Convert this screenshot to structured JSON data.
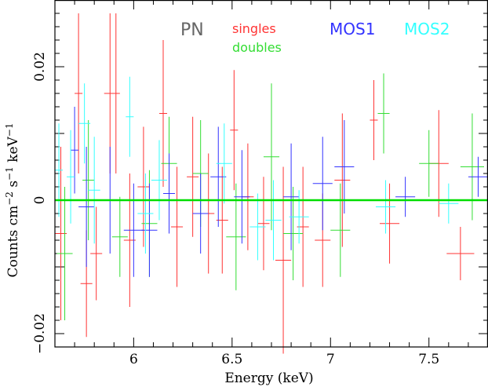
{
  "chart_data": {
    "type": "scatter",
    "xlabel": "Energy (keV)",
    "ylabel": "Counts cm^-2 s^-1 keV^-1",
    "xlim": [
      5.6,
      7.8
    ],
    "ylim": [
      -0.022,
      0.03
    ],
    "x_ticks": [
      "6",
      "6.5",
      "7",
      "7.5"
    ],
    "x_tick_values": [
      6,
      6.5,
      7,
      7.5
    ],
    "y_ticks": [
      "−0.02",
      "0",
      "0.02"
    ],
    "y_tick_values": [
      -0.02,
      0,
      0.02
    ],
    "model_line": {
      "y": 0,
      "color": "#00dd00"
    },
    "legend": [
      {
        "label": "PN",
        "color": "#666666"
      },
      {
        "label": "singles",
        "color": "#ff3333"
      },
      {
        "label": "doubles",
        "color": "#33dd33"
      },
      {
        "label": "MOS1",
        "color": "#3333ff"
      },
      {
        "label": "MOS2",
        "color": "#33ffff"
      }
    ],
    "series": [
      {
        "legend": "PN singles",
        "color": "#ff3333",
        "points": [
          {
            "x": 5.63,
            "y": -0.005,
            "xerr": 0.03,
            "yerr": 0.013
          },
          {
            "x": 5.72,
            "y": 0.016,
            "xerr": 0.02,
            "yerr": 0.012
          },
          {
            "x": 5.76,
            "y": -0.0125,
            "xerr": 0.03,
            "yerr": 0.008
          },
          {
            "x": 5.81,
            "y": -0.008,
            "xerr": 0.03,
            "yerr": 0.007
          },
          {
            "x": 5.88,
            "y": 0.016,
            "xerr": 0.03,
            "yerr": 0.012
          },
          {
            "x": 5.91,
            "y": 0.016,
            "xerr": 0.02,
            "yerr": 0.012
          },
          {
            "x": 5.98,
            "y": -0.006,
            "xerr": 0.03,
            "yerr": 0.01
          },
          {
            "x": 6.05,
            "y": 0.002,
            "xerr": 0.03,
            "yerr": 0.009
          },
          {
            "x": 6.15,
            "y": 0.013,
            "xerr": 0.02,
            "yerr": 0.011
          },
          {
            "x": 6.22,
            "y": -0.004,
            "xerr": 0.03,
            "yerr": 0.009
          },
          {
            "x": 6.3,
            "y": 0.0035,
            "xerr": 0.03,
            "yerr": 0.009
          },
          {
            "x": 6.38,
            "y": -0.002,
            "xerr": 0.03,
            "yerr": 0.009
          },
          {
            "x": 6.45,
            "y": -0.003,
            "xerr": 0.03,
            "yerr": 0.008
          },
          {
            "x": 6.51,
            "y": 0.0105,
            "xerr": 0.02,
            "yerr": 0.009
          },
          {
            "x": 6.58,
            "y": 0.0005,
            "xerr": 0.03,
            "yerr": 0.008
          },
          {
            "x": 6.66,
            "y": -0.0035,
            "xerr": 0.03,
            "yerr": 0.007
          },
          {
            "x": 6.76,
            "y": -0.009,
            "xerr": 0.04,
            "yerr": 0.014
          },
          {
            "x": 6.86,
            "y": -0.004,
            "xerr": 0.03,
            "yerr": 0.009
          },
          {
            "x": 6.96,
            "y": -0.006,
            "xerr": 0.04,
            "yerr": 0.007
          },
          {
            "x": 7.06,
            "y": 0.003,
            "xerr": 0.04,
            "yerr": 0.01
          },
          {
            "x": 7.22,
            "y": 0.012,
            "xerr": 0.02,
            "yerr": 0.006
          },
          {
            "x": 7.3,
            "y": -0.0035,
            "xerr": 0.05,
            "yerr": 0.006
          },
          {
            "x": 7.55,
            "y": 0.0055,
            "xerr": 0.05,
            "yerr": 0.008
          },
          {
            "x": 7.66,
            "y": -0.008,
            "xerr": 0.07,
            "yerr": 0.004
          }
        ]
      },
      {
        "legend": "PN doubles",
        "color": "#33dd33",
        "points": [
          {
            "x": 5.65,
            "y": -0.008,
            "xerr": 0.04,
            "yerr": 0.01
          },
          {
            "x": 5.77,
            "y": 0.003,
            "xerr": 0.03,
            "yerr": 0.009
          },
          {
            "x": 5.93,
            "y": -0.0055,
            "xerr": 0.04,
            "yerr": 0.006
          },
          {
            "x": 6.08,
            "y": -0.0035,
            "xerr": 0.04,
            "yerr": 0.008
          },
          {
            "x": 6.18,
            "y": 0.0055,
            "xerr": 0.04,
            "yerr": 0.007
          },
          {
            "x": 6.34,
            "y": 0.004,
            "xerr": 0.04,
            "yerr": 0.008
          },
          {
            "x": 6.52,
            "y": -0.0055,
            "xerr": 0.05,
            "yerr": 0.008
          },
          {
            "x": 6.7,
            "y": 0.0065,
            "xerr": 0.04,
            "yerr": 0.011
          },
          {
            "x": 6.81,
            "y": -0.005,
            "xerr": 0.05,
            "yerr": 0.007
          },
          {
            "x": 7.05,
            "y": -0.0045,
            "xerr": 0.05,
            "yerr": 0.007
          },
          {
            "x": 7.27,
            "y": 0.013,
            "xerr": 0.03,
            "yerr": 0.006
          },
          {
            "x": 7.5,
            "y": 0.0055,
            "xerr": 0.05,
            "yerr": 0.005
          },
          {
            "x": 7.72,
            "y": 0.005,
            "xerr": 0.06,
            "yerr": 0.008
          }
        ]
      },
      {
        "legend": "MOS1",
        "color": "#3333ff",
        "points": [
          {
            "x": 5.7,
            "y": 0.0075,
            "xerr": 0.02,
            "yerr": 0.0065
          },
          {
            "x": 5.76,
            "y": -0.001,
            "xerr": 0.04,
            "yerr": 0.009
          },
          {
            "x": 5.88,
            "y": 0.0,
            "xerr": 0.03,
            "yerr": 0.008
          },
          {
            "x": 6.0,
            "y": -0.0045,
            "xerr": 0.05,
            "yerr": 0.007
          },
          {
            "x": 6.08,
            "y": -0.0045,
            "xerr": 0.04,
            "yerr": 0.007
          },
          {
            "x": 6.18,
            "y": 0.001,
            "xerr": 0.03,
            "yerr": 0.006
          },
          {
            "x": 6.34,
            "y": -0.002,
            "xerr": 0.04,
            "yerr": 0.006
          },
          {
            "x": 6.43,
            "y": 0.0035,
            "xerr": 0.04,
            "yerr": 0.0075
          },
          {
            "x": 6.55,
            "y": 0.0005,
            "xerr": 0.04,
            "yerr": 0.007
          },
          {
            "x": 6.8,
            "y": 0.0005,
            "xerr": 0.04,
            "yerr": 0.008
          },
          {
            "x": 6.96,
            "y": 0.0025,
            "xerr": 0.05,
            "yerr": 0.007
          },
          {
            "x": 7.07,
            "y": 0.005,
            "xerr": 0.05,
            "yerr": 0.007
          },
          {
            "x": 7.38,
            "y": 0.0005,
            "xerr": 0.05,
            "yerr": 0.003
          },
          {
            "x": 7.75,
            "y": 0.0035,
            "xerr": 0.05,
            "yerr": 0.003
          }
        ]
      },
      {
        "legend": "MOS2",
        "color": "#33ffff",
        "points": [
          {
            "x": 5.62,
            "y": 0.0045,
            "xerr": 0.02,
            "yerr": 0.007
          },
          {
            "x": 5.68,
            "y": 0.0035,
            "xerr": 0.02,
            "yerr": 0.007
          },
          {
            "x": 5.75,
            "y": 0.0115,
            "xerr": 0.03,
            "yerr": 0.006
          },
          {
            "x": 5.8,
            "y": 0.0015,
            "xerr": 0.03,
            "yerr": 0.008
          },
          {
            "x": 5.98,
            "y": 0.0125,
            "xerr": 0.02,
            "yerr": 0.006
          },
          {
            "x": 6.06,
            "y": -0.002,
            "xerr": 0.04,
            "yerr": 0.006
          },
          {
            "x": 6.13,
            "y": 0.003,
            "xerr": 0.04,
            "yerr": 0.006
          },
          {
            "x": 6.46,
            "y": 0.0055,
            "xerr": 0.04,
            "yerr": 0.006
          },
          {
            "x": 6.63,
            "y": -0.004,
            "xerr": 0.04,
            "yerr": 0.005
          },
          {
            "x": 6.71,
            "y": -0.003,
            "xerr": 0.04,
            "yerr": 0.006
          },
          {
            "x": 6.84,
            "y": -0.0025,
            "xerr": 0.05,
            "yerr": 0.004
          },
          {
            "x": 7.28,
            "y": -0.001,
            "xerr": 0.05,
            "yerr": 0.004
          },
          {
            "x": 7.6,
            "y": -0.0005,
            "xerr": 0.05,
            "yerr": 0.003
          }
        ]
      }
    ]
  }
}
